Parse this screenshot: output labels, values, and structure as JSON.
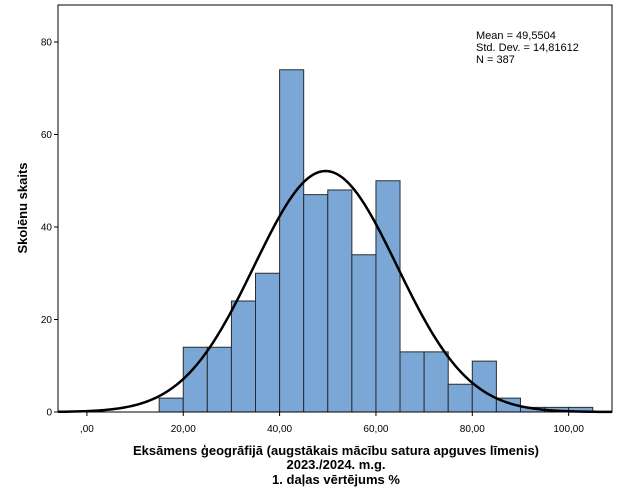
{
  "chart_data": {
    "type": "bar",
    "subtype": "histogram with normal curve",
    "bins": [
      {
        "from": 15,
        "to": 20,
        "count": 3
      },
      {
        "from": 20,
        "to": 25,
        "count": 14
      },
      {
        "from": 25,
        "to": 30,
        "count": 14
      },
      {
        "from": 30,
        "to": 35,
        "count": 24
      },
      {
        "from": 35,
        "to": 40,
        "count": 30
      },
      {
        "from": 40,
        "to": 45,
        "count": 74
      },
      {
        "from": 45,
        "to": 50,
        "count": 47
      },
      {
        "from": 50,
        "to": 55,
        "count": 48
      },
      {
        "from": 55,
        "to": 60,
        "count": 34
      },
      {
        "from": 60,
        "to": 65,
        "count": 50
      },
      {
        "from": 65,
        "to": 70,
        "count": 13
      },
      {
        "from": 70,
        "to": 75,
        "count": 13
      },
      {
        "from": 75,
        "to": 80,
        "count": 6
      },
      {
        "from": 80,
        "to": 85,
        "count": 11
      },
      {
        "from": 85,
        "to": 90,
        "count": 3
      },
      {
        "from": 90,
        "to": 95,
        "count": 1
      },
      {
        "from": 95,
        "to": 100,
        "count": 1
      },
      {
        "from": 100,
        "to": 105,
        "count": 1
      }
    ],
    "normal_curve": {
      "mean": 49.5504,
      "std_dev": 14.81612,
      "n": 387,
      "bin_width": 5
    },
    "xlim": [
      -6,
      109
    ],
    "ylim": [
      0,
      88
    ],
    "x_ticks": [
      0,
      20,
      40,
      60,
      80,
      100
    ],
    "x_tick_labels": [
      ",00",
      "20,00",
      "40,00",
      "60,00",
      "80,00",
      "100,00"
    ],
    "y_ticks": [
      0,
      20,
      40,
      60,
      80
    ],
    "y_tick_labels": [
      "0",
      "20",
      "40",
      "60",
      "80"
    ],
    "ylabel": "Skolēnu skaits",
    "xlabel_lines": [
      "Eksāmens ģeogrāfijā (augstākais mācību satura apguves līmenis)",
      "2023./2024. m.g.",
      "1. daļas vērtējums %"
    ],
    "stats_lines": [
      "Mean = 49,5504",
      "Std. Dev. = 14,81612",
      "N = 387"
    ],
    "grid": false,
    "colors": {
      "bar_fill": "#7BA7D7",
      "bar_stroke": "#2b2b2b",
      "curve": "#000000",
      "axis": "#000000"
    }
  }
}
